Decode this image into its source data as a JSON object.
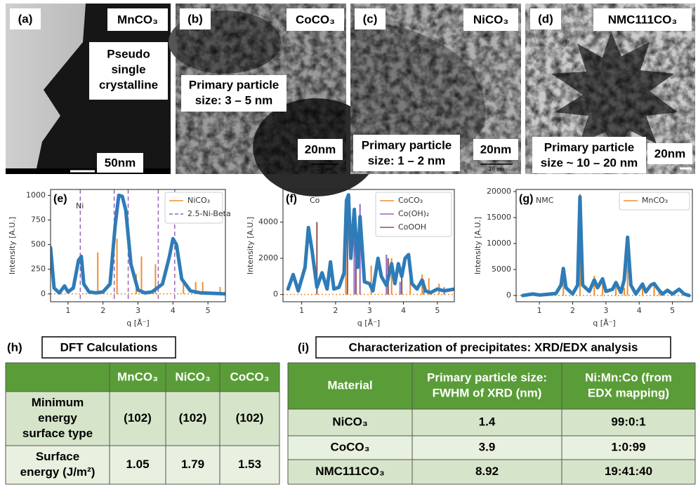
{
  "images": [
    {
      "label": "(a)",
      "material": "MnCO₃",
      "note": [
        "Pseudo",
        "single",
        "crystalline"
      ],
      "scale": "50nm"
    },
    {
      "label": "(b)",
      "material": "CoCO₃",
      "note": [
        "Primary particle",
        "size: 3 – 5 nm"
      ],
      "scale": "20nm",
      "small_scale": "20 nm"
    },
    {
      "label": "(c)",
      "material": "NiCO₃",
      "note": [
        "Primary particle",
        "size: 1 – 2 nm"
      ],
      "scale": "20nm",
      "small_scale": "20 nm"
    },
    {
      "label": "(d)",
      "material": "NMC111CO₃",
      "note": [
        "Primary particle",
        "size ~ 10 – 20 nm"
      ],
      "scale": "20nm"
    }
  ],
  "chart_data": [
    {
      "type": "line",
      "label": "(e)",
      "annotation": "Ni",
      "xlabel": "q [Å⁻]",
      "ylabel": "Intensity [A.U.]",
      "xlim": [
        0.5,
        5.5
      ],
      "xticks": [
        1,
        2,
        3,
        4,
        5
      ],
      "ylim": [
        -80,
        1060
      ],
      "yticks": [
        0,
        250,
        500,
        750,
        1000
      ],
      "legend": "upper right",
      "curve": {
        "color": "#2e7cb8",
        "x": [
          0.5,
          0.6,
          0.75,
          0.9,
          1.0,
          1.15,
          1.3,
          1.38,
          1.45,
          1.6,
          1.8,
          2.0,
          2.2,
          2.35,
          2.45,
          2.55,
          2.65,
          2.8,
          3.0,
          3.2,
          3.4,
          3.7,
          3.9,
          4.0,
          4.1,
          4.25,
          4.5,
          4.8,
          5.2,
          5.5
        ],
        "values": [
          470,
          60,
          10,
          80,
          20,
          60,
          340,
          380,
          100,
          20,
          10,
          20,
          100,
          700,
          1000,
          990,
          850,
          300,
          40,
          10,
          20,
          100,
          380,
          560,
          500,
          150,
          30,
          10,
          5,
          0
        ]
      },
      "series": [
        {
          "name": "NiCO₃",
          "color": "#f28e2b",
          "style": "stick",
          "x": [
            1.85,
            2.4,
            2.95,
            3.1,
            3.5,
            4.3,
            4.65,
            4.85,
            5.35
          ],
          "values": [
            420,
            560,
            200,
            380,
            300,
            150,
            120,
            120,
            70
          ]
        },
        {
          "name": "2.5-Ni-Beta",
          "color": "#9467bd",
          "style": "dashed",
          "x": [
            1.35,
            2.32,
            2.72,
            3.58,
            4.05
          ]
        }
      ]
    },
    {
      "type": "line",
      "label": "(f)",
      "annotation": "Co",
      "xlabel": "q [Å⁻]",
      "ylabel": "Intensity [A.U.]",
      "xlim": [
        0.45,
        5.5
      ],
      "xticks": [
        1,
        2,
        3,
        4,
        5
      ],
      "ylim": [
        -400,
        5800
      ],
      "yticks": [
        0,
        2000,
        4000
      ],
      "legend": "upper right",
      "curve": {
        "color": "#2e7cb8",
        "x": [
          0.6,
          0.75,
          0.9,
          1.1,
          1.2,
          1.3,
          1.45,
          1.6,
          1.75,
          1.85,
          1.95,
          2.1,
          2.25,
          2.32,
          2.38,
          2.45,
          2.55,
          2.65,
          2.72,
          2.85,
          3.0,
          3.1,
          3.25,
          3.35,
          3.5,
          3.65,
          3.75,
          3.85,
          3.95,
          4.05,
          4.15,
          4.25,
          4.4,
          4.55,
          4.65,
          4.8,
          5.0,
          5.2,
          5.5
        ],
        "values": [
          300,
          1100,
          200,
          1500,
          3700,
          2500,
          400,
          1200,
          300,
          1800,
          300,
          400,
          1200,
          5200,
          5500,
          2000,
          4700,
          1500,
          4300,
          700,
          600,
          200,
          2000,
          1000,
          500,
          1700,
          600,
          1700,
          1000,
          2000,
          2200,
          600,
          300,
          800,
          200,
          100,
          300,
          200,
          300
        ]
      },
      "series": [
        {
          "name": "CoCO₃",
          "color": "#f28e2b",
          "style": "stick",
          "x": [
            2.3,
            3.05,
            3.65,
            4.2,
            4.55,
            4.75,
            5.05
          ],
          "values": [
            5200,
            1600,
            2000,
            1800,
            1100,
            900,
            600
          ]
        },
        {
          "name": "Co(OH)₂",
          "color": "#9467bd",
          "style": "stick",
          "x": [
            2.55,
            2.72,
            3.5,
            3.9,
            4.6,
            5.2
          ],
          "values": [
            4300,
            5000,
            2200,
            700,
            800,
            400
          ]
        },
        {
          "name": "CoOOH",
          "color": "#8c564b",
          "style": "stick",
          "x": [
            1.45,
            2.35,
            2.6,
            3.55,
            3.95
          ],
          "values": [
            4000,
            5000,
            3300,
            2000,
            1000
          ]
        }
      ]
    },
    {
      "type": "line",
      "label": "(g)",
      "annotation": "NMC",
      "xlabel": "q [Å⁻]",
      "ylabel": "Intensity [A.U.]",
      "xlim": [
        0.3,
        5.6
      ],
      "xticks": [
        1,
        2,
        3,
        4,
        5
      ],
      "ylim": [
        -1200,
        20400
      ],
      "yticks": [
        0,
        5000,
        10000,
        15000,
        20000
      ],
      "legend": "upper right",
      "curve": {
        "color": "#2e7cb8",
        "x": [
          0.5,
          0.8,
          1.0,
          1.2,
          1.5,
          1.65,
          1.72,
          1.8,
          2.0,
          2.15,
          2.22,
          2.3,
          2.5,
          2.65,
          2.75,
          2.9,
          3.0,
          3.2,
          3.3,
          3.45,
          3.55,
          3.65,
          3.75,
          3.9,
          4.1,
          4.2,
          4.35,
          4.45,
          4.6,
          4.7,
          4.85,
          5.0,
          5.2,
          5.35,
          5.5
        ],
        "values": [
          0,
          300,
          100,
          200,
          400,
          2000,
          5200,
          1500,
          300,
          2000,
          19000,
          2000,
          800,
          3000,
          1500,
          3200,
          800,
          1200,
          2500,
          600,
          3000,
          11200,
          2000,
          300,
          2200,
          700,
          2000,
          2300,
          1000,
          300,
          1000,
          300,
          1200,
          300,
          0
        ]
      },
      "series": [
        {
          "name": "MnCO₃",
          "color": "#f28e2b",
          "style": "stick",
          "x": [
            1.72,
            2.22,
            2.65,
            2.9,
            3.3,
            3.55,
            3.65,
            4.1,
            4.45,
            4.6
          ],
          "values": [
            4500,
            19500,
            3800,
            3500,
            2300,
            1500,
            6200,
            1800,
            1900,
            1200
          ]
        }
      ]
    }
  ],
  "tables": [
    {
      "label": "(h)",
      "title": "DFT Calculations",
      "columns": [
        "MnCO₃",
        "NiCO₃",
        "CoCO₃"
      ],
      "rows": [
        {
          "label": [
            "Minimum",
            "energy",
            "surface type"
          ],
          "cells": [
            "(102)",
            "(102)",
            "(102)"
          ]
        },
        {
          "label": [
            "Surface",
            "energy (J/m²)"
          ],
          "cells": [
            "1.05",
            "1.79",
            "1.53"
          ]
        }
      ]
    },
    {
      "label": "(i)",
      "title": "Characterization of precipitates: XRD/EDX analysis",
      "header": [
        "Material",
        [
          "Primary particle size:",
          "FWHM of XRD (nm)"
        ],
        [
          "Ni:Mn:Co (from",
          "EDX mapping)"
        ]
      ],
      "rows": [
        [
          "NiCO₃",
          "1.4",
          "99:0:1"
        ],
        [
          "CoCO₃",
          "3.9",
          "1:0:99"
        ],
        [
          "NMC111CO₃",
          "8.92",
          "19:41:40"
        ]
      ]
    }
  ]
}
